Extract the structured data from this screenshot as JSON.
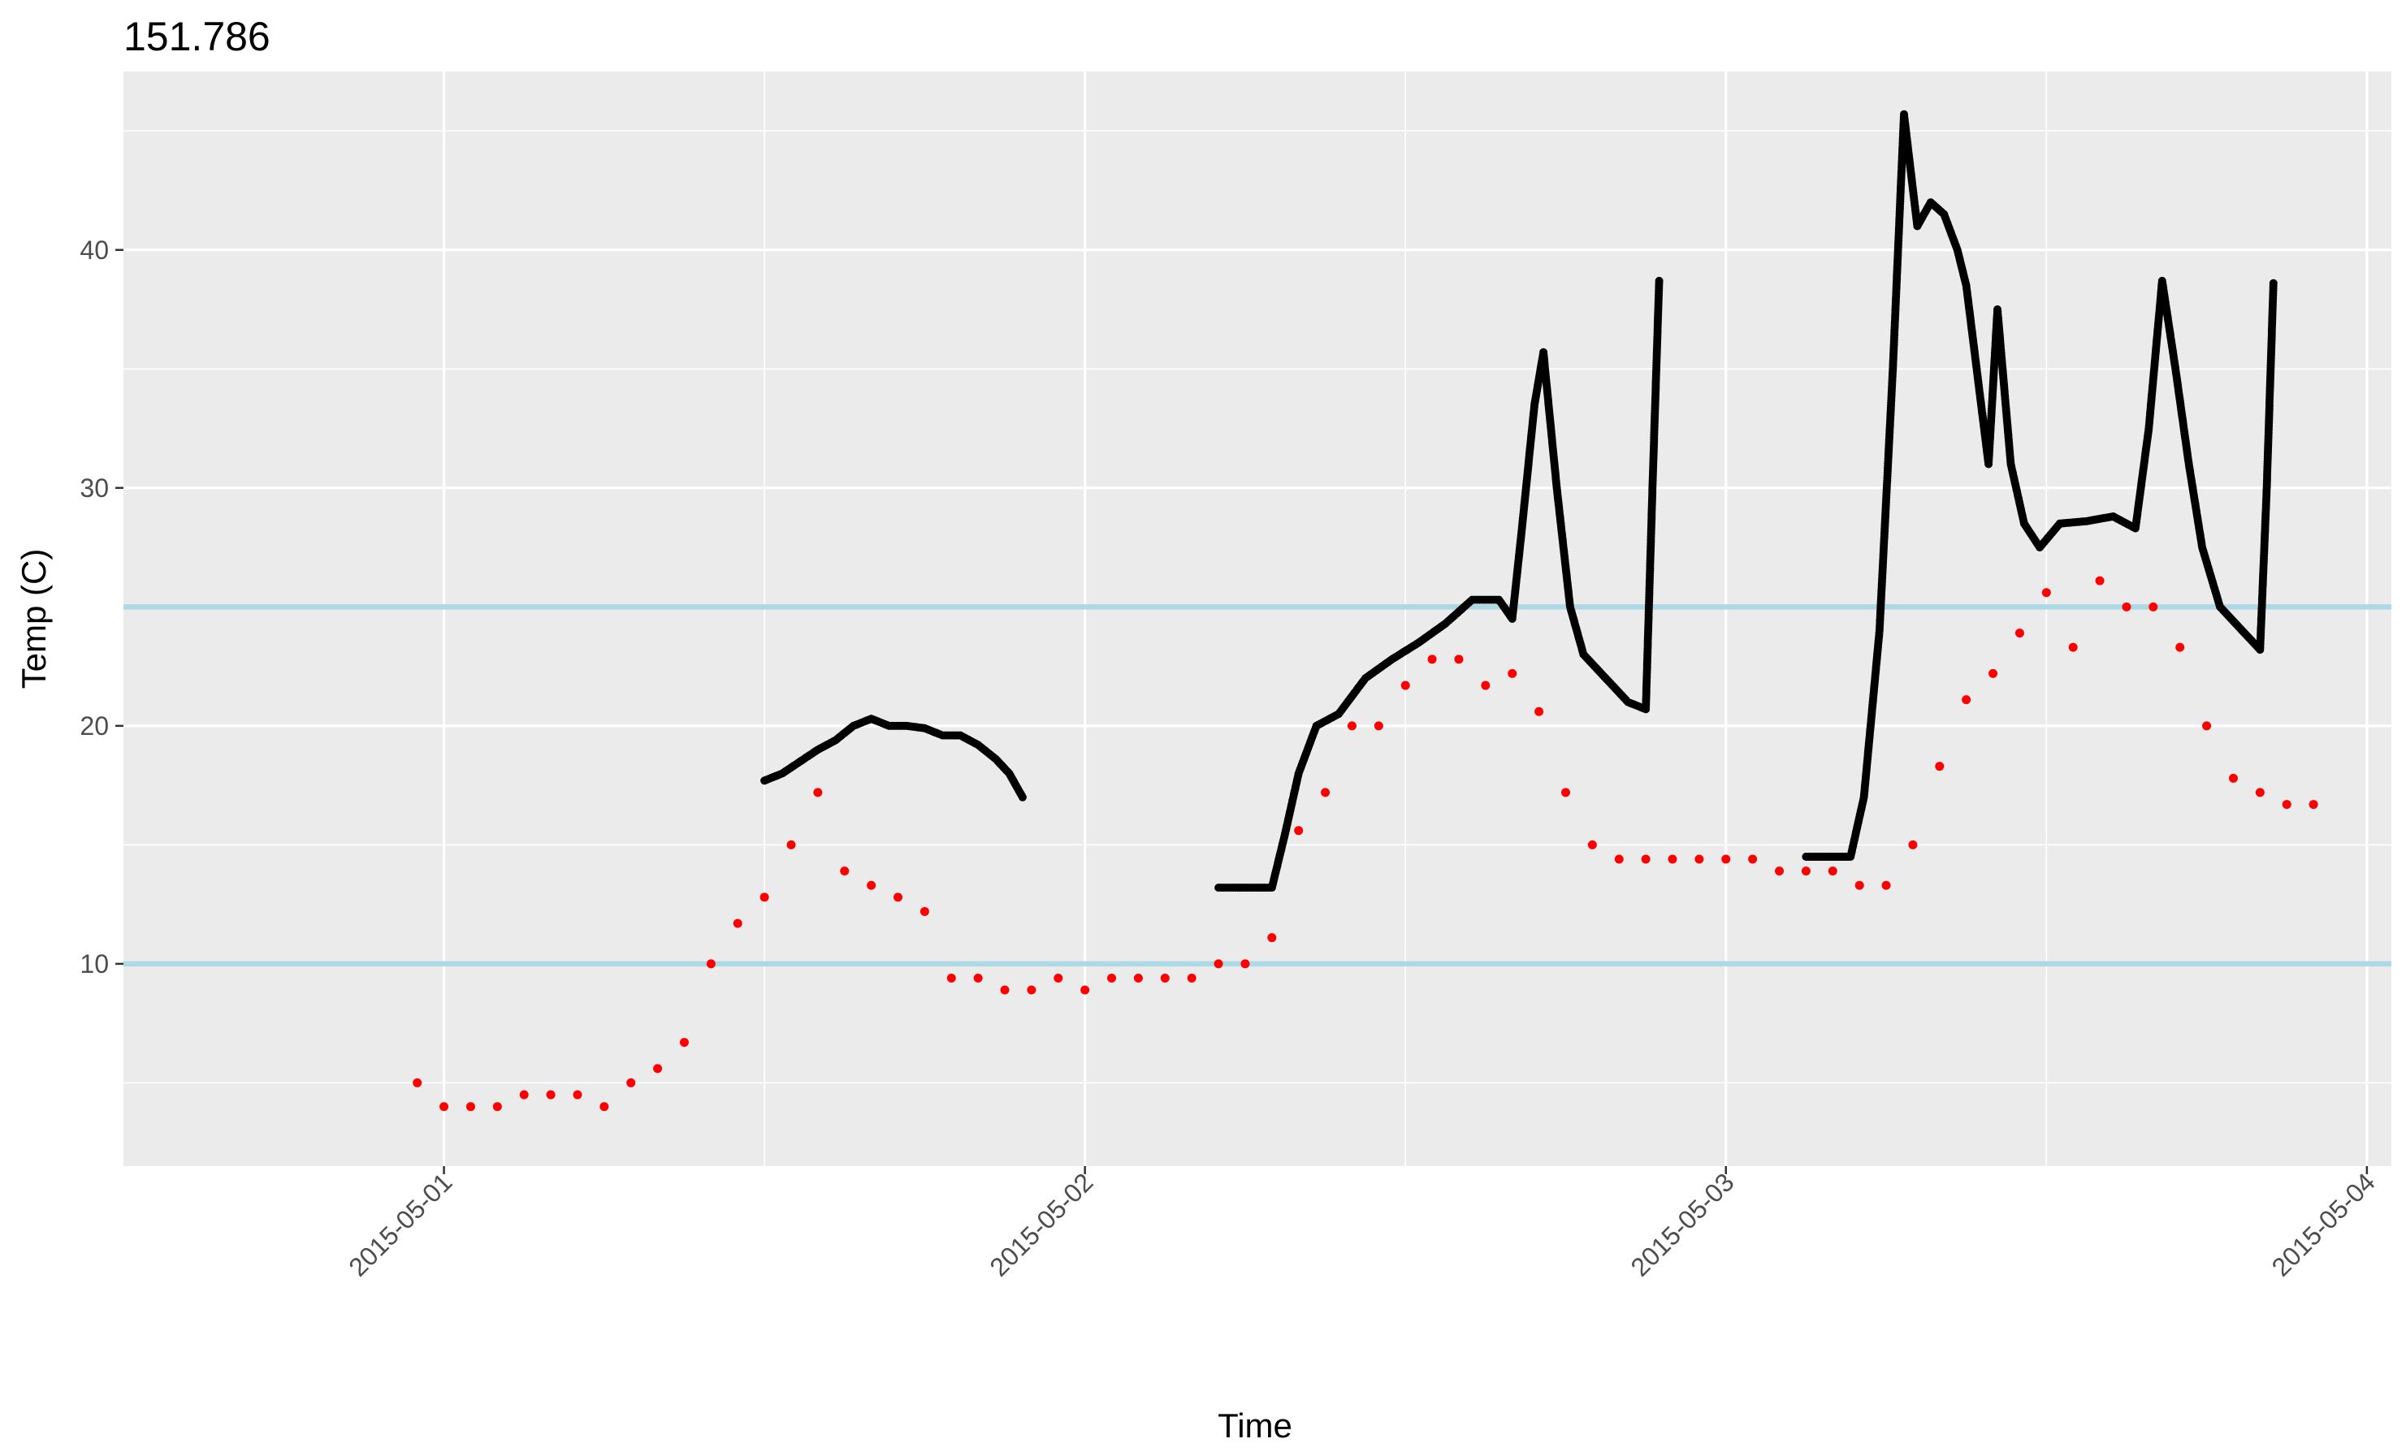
{
  "chart_data": {
    "type": "scatter",
    "title": "151.786",
    "xlabel": "Time",
    "ylabel": "Temp (C)",
    "xlim": [
      "2015-04-30 12:00",
      "2015-05-04 00:55"
    ],
    "ylim": [
      1.5,
      47.5
    ],
    "x_ticks": [
      "2015-05-01",
      "2015-05-02",
      "2015-05-03",
      "2015-05-04"
    ],
    "y_ticks": [
      10,
      20,
      30,
      40
    ],
    "grid": true,
    "legend": "none",
    "reference_lines": [
      {
        "axis": "y",
        "value": 10,
        "color": "#add8e6"
      },
      {
        "axis": "y",
        "value": 25,
        "color": "#add8e6"
      }
    ],
    "series": [
      {
        "color": "#000000",
        "marker": "dense-points",
        "segments": [
          [
            [
              "2015-05-01 12:00",
              17.7
            ],
            [
              "2015-05-01 12:40",
              18.0
            ],
            [
              "2015-05-01 13:20",
              18.5
            ],
            [
              "2015-05-01 14:00",
              19.0
            ],
            [
              "2015-05-01 14:40",
              19.4
            ],
            [
              "2015-05-01 15:20",
              20.0
            ],
            [
              "2015-05-01 16:00",
              20.3
            ],
            [
              "2015-05-01 16:40",
              20.0
            ],
            [
              "2015-05-01 17:20",
              20.0
            ],
            [
              "2015-05-01 18:00",
              19.9
            ],
            [
              "2015-05-01 18:40",
              19.6
            ],
            [
              "2015-05-01 19:20",
              19.6
            ],
            [
              "2015-05-01 20:00",
              19.2
            ],
            [
              "2015-05-01 20:40",
              18.6
            ],
            [
              "2015-05-01 21:10",
              18.0
            ],
            [
              "2015-05-01 21:40",
              17.0
            ]
          ],
          [
            [
              "2015-05-02 05:00",
              13.2
            ],
            [
              "2015-05-02 06:00",
              13.2
            ],
            [
              "2015-05-02 07:00",
              13.2
            ],
            [
              "2015-05-02 07:30",
              15.5
            ],
            [
              "2015-05-02 08:00",
              18.0
            ],
            [
              "2015-05-02 08:40",
              20.0
            ],
            [
              "2015-05-02 09:30",
              20.5
            ],
            [
              "2015-05-02 10:30",
              22.0
            ],
            [
              "2015-05-02 11:30",
              22.8
            ],
            [
              "2015-05-02 12:30",
              23.5
            ],
            [
              "2015-05-02 13:30",
              24.3
            ],
            [
              "2015-05-02 14:30",
              25.3
            ],
            [
              "2015-05-02 15:30",
              25.3
            ],
            [
              "2015-05-02 16:00",
              24.5
            ],
            [
              "2015-05-02 16:20",
              28.0
            ],
            [
              "2015-05-02 16:50",
              33.5
            ],
            [
              "2015-05-02 17:10",
              35.7
            ],
            [
              "2015-05-02 17:40",
              30.0
            ],
            [
              "2015-05-02 18:10",
              25.0
            ],
            [
              "2015-05-02 18:40",
              23.0
            ],
            [
              "2015-05-02 19:30",
              22.0
            ],
            [
              "2015-05-02 20:20",
              21.0
            ],
            [
              "2015-05-02 21:00",
              20.7
            ],
            [
              "2015-05-02 21:15",
              30.0
            ],
            [
              "2015-05-02 21:30",
              38.7
            ]
          ],
          [
            [
              "2015-05-03 03:00",
              14.5
            ],
            [
              "2015-05-03 04:00",
              14.5
            ],
            [
              "2015-05-03 04:40",
              14.5
            ],
            [
              "2015-05-03 05:10",
              17.0
            ],
            [
              "2015-05-03 05:45",
              24.0
            ],
            [
              "2015-05-03 06:15",
              35.0
            ],
            [
              "2015-05-03 06:40",
              45.7
            ],
            [
              "2015-05-03 07:10",
              41.0
            ],
            [
              "2015-05-03 07:40",
              42.0
            ],
            [
              "2015-05-03 08:10",
              41.5
            ],
            [
              "2015-05-03 08:40",
              40.0
            ],
            [
              "2015-05-03 09:00",
              38.5
            ],
            [
              "2015-05-03 09:30",
              34.0
            ],
            [
              "2015-05-03 09:50",
              31.0
            ],
            [
              "2015-05-03 10:10",
              37.5
            ],
            [
              "2015-05-03 10:40",
              31.0
            ],
            [
              "2015-05-03 11:10",
              28.5
            ],
            [
              "2015-05-03 11:45",
              27.5
            ],
            [
              "2015-05-03 12:30",
              28.5
            ],
            [
              "2015-05-03 13:30",
              28.6
            ],
            [
              "2015-05-03 14:30",
              28.8
            ],
            [
              "2015-05-03 15:20",
              28.3
            ],
            [
              "2015-05-03 15:50",
              32.5
            ],
            [
              "2015-05-03 16:20",
              38.7
            ],
            [
              "2015-05-03 16:50",
              35.0
            ],
            [
              "2015-05-03 17:20",
              31.0
            ],
            [
              "2015-05-03 17:50",
              27.5
            ],
            [
              "2015-05-03 18:30",
              25.0
            ],
            [
              "2015-05-03 19:20",
              24.0
            ],
            [
              "2015-05-03 20:00",
              23.2
            ],
            [
              "2015-05-03 20:15",
              30.0
            ],
            [
              "2015-05-03 20:30",
              38.6
            ]
          ]
        ]
      },
      {
        "color": "#ff0000",
        "marker": "point",
        "points": [
          [
            "2015-04-30 23:00",
            5.0
          ],
          [
            "2015-05-01 00:00",
            4.0
          ],
          [
            "2015-05-01 01:00",
            4.0
          ],
          [
            "2015-05-01 02:00",
            4.0
          ],
          [
            "2015-05-01 03:00",
            4.5
          ],
          [
            "2015-05-01 04:00",
            4.5
          ],
          [
            "2015-05-01 05:00",
            4.5
          ],
          [
            "2015-05-01 06:00",
            4.0
          ],
          [
            "2015-05-01 07:00",
            5.0
          ],
          [
            "2015-05-01 08:00",
            5.6
          ],
          [
            "2015-05-01 09:00",
            6.7
          ],
          [
            "2015-05-01 10:00",
            10.0
          ],
          [
            "2015-05-01 11:00",
            11.7
          ],
          [
            "2015-05-01 12:00",
            12.8
          ],
          [
            "2015-05-01 13:00",
            15.0
          ],
          [
            "2015-05-01 14:00",
            17.2
          ],
          [
            "2015-05-01 15:00",
            13.9
          ],
          [
            "2015-05-01 16:00",
            13.3
          ],
          [
            "2015-05-01 17:00",
            12.8
          ],
          [
            "2015-05-01 18:00",
            12.2
          ],
          [
            "2015-05-01 19:00",
            9.4
          ],
          [
            "2015-05-01 20:00",
            9.4
          ],
          [
            "2015-05-01 21:00",
            8.9
          ],
          [
            "2015-05-01 22:00",
            8.9
          ],
          [
            "2015-05-01 23:00",
            9.4
          ],
          [
            "2015-05-02 00:00",
            8.9
          ],
          [
            "2015-05-02 01:00",
            9.4
          ],
          [
            "2015-05-02 02:00",
            9.4
          ],
          [
            "2015-05-02 03:00",
            9.4
          ],
          [
            "2015-05-02 04:00",
            9.4
          ],
          [
            "2015-05-02 05:00",
            10.0
          ],
          [
            "2015-05-02 06:00",
            10.0
          ],
          [
            "2015-05-02 07:00",
            11.1
          ],
          [
            "2015-05-02 08:00",
            15.6
          ],
          [
            "2015-05-02 09:00",
            17.2
          ],
          [
            "2015-05-02 10:00",
            20.0
          ],
          [
            "2015-05-02 11:00",
            20.0
          ],
          [
            "2015-05-02 12:00",
            21.7
          ],
          [
            "2015-05-02 13:00",
            22.8
          ],
          [
            "2015-05-02 14:00",
            22.8
          ],
          [
            "2015-05-02 15:00",
            21.7
          ],
          [
            "2015-05-02 16:00",
            22.2
          ],
          [
            "2015-05-02 17:00",
            20.6
          ],
          [
            "2015-05-02 18:00",
            17.2
          ],
          [
            "2015-05-02 19:00",
            15.0
          ],
          [
            "2015-05-02 20:00",
            14.4
          ],
          [
            "2015-05-02 21:00",
            14.4
          ],
          [
            "2015-05-02 22:00",
            14.4
          ],
          [
            "2015-05-02 23:00",
            14.4
          ],
          [
            "2015-05-03 00:00",
            14.4
          ],
          [
            "2015-05-03 01:00",
            14.4
          ],
          [
            "2015-05-03 02:00",
            13.9
          ],
          [
            "2015-05-03 03:00",
            13.9
          ],
          [
            "2015-05-03 04:00",
            13.9
          ],
          [
            "2015-05-03 05:00",
            13.3
          ],
          [
            "2015-05-03 06:00",
            13.3
          ],
          [
            "2015-05-03 07:00",
            15.0
          ],
          [
            "2015-05-03 08:00",
            18.3
          ],
          [
            "2015-05-03 09:00",
            21.1
          ],
          [
            "2015-05-03 10:00",
            22.2
          ],
          [
            "2015-05-03 11:00",
            23.9
          ],
          [
            "2015-05-03 12:00",
            25.6
          ],
          [
            "2015-05-03 13:00",
            23.3
          ],
          [
            "2015-05-03 14:00",
            26.1
          ],
          [
            "2015-05-03 15:00",
            25.0
          ],
          [
            "2015-05-03 16:00",
            25.0
          ],
          [
            "2015-05-03 17:00",
            23.3
          ],
          [
            "2015-05-03 18:00",
            20.0
          ],
          [
            "2015-05-03 19:00",
            17.8
          ],
          [
            "2015-05-03 20:00",
            17.2
          ],
          [
            "2015-05-03 21:00",
            16.7
          ],
          [
            "2015-05-03 22:00",
            16.7
          ]
        ]
      }
    ]
  }
}
